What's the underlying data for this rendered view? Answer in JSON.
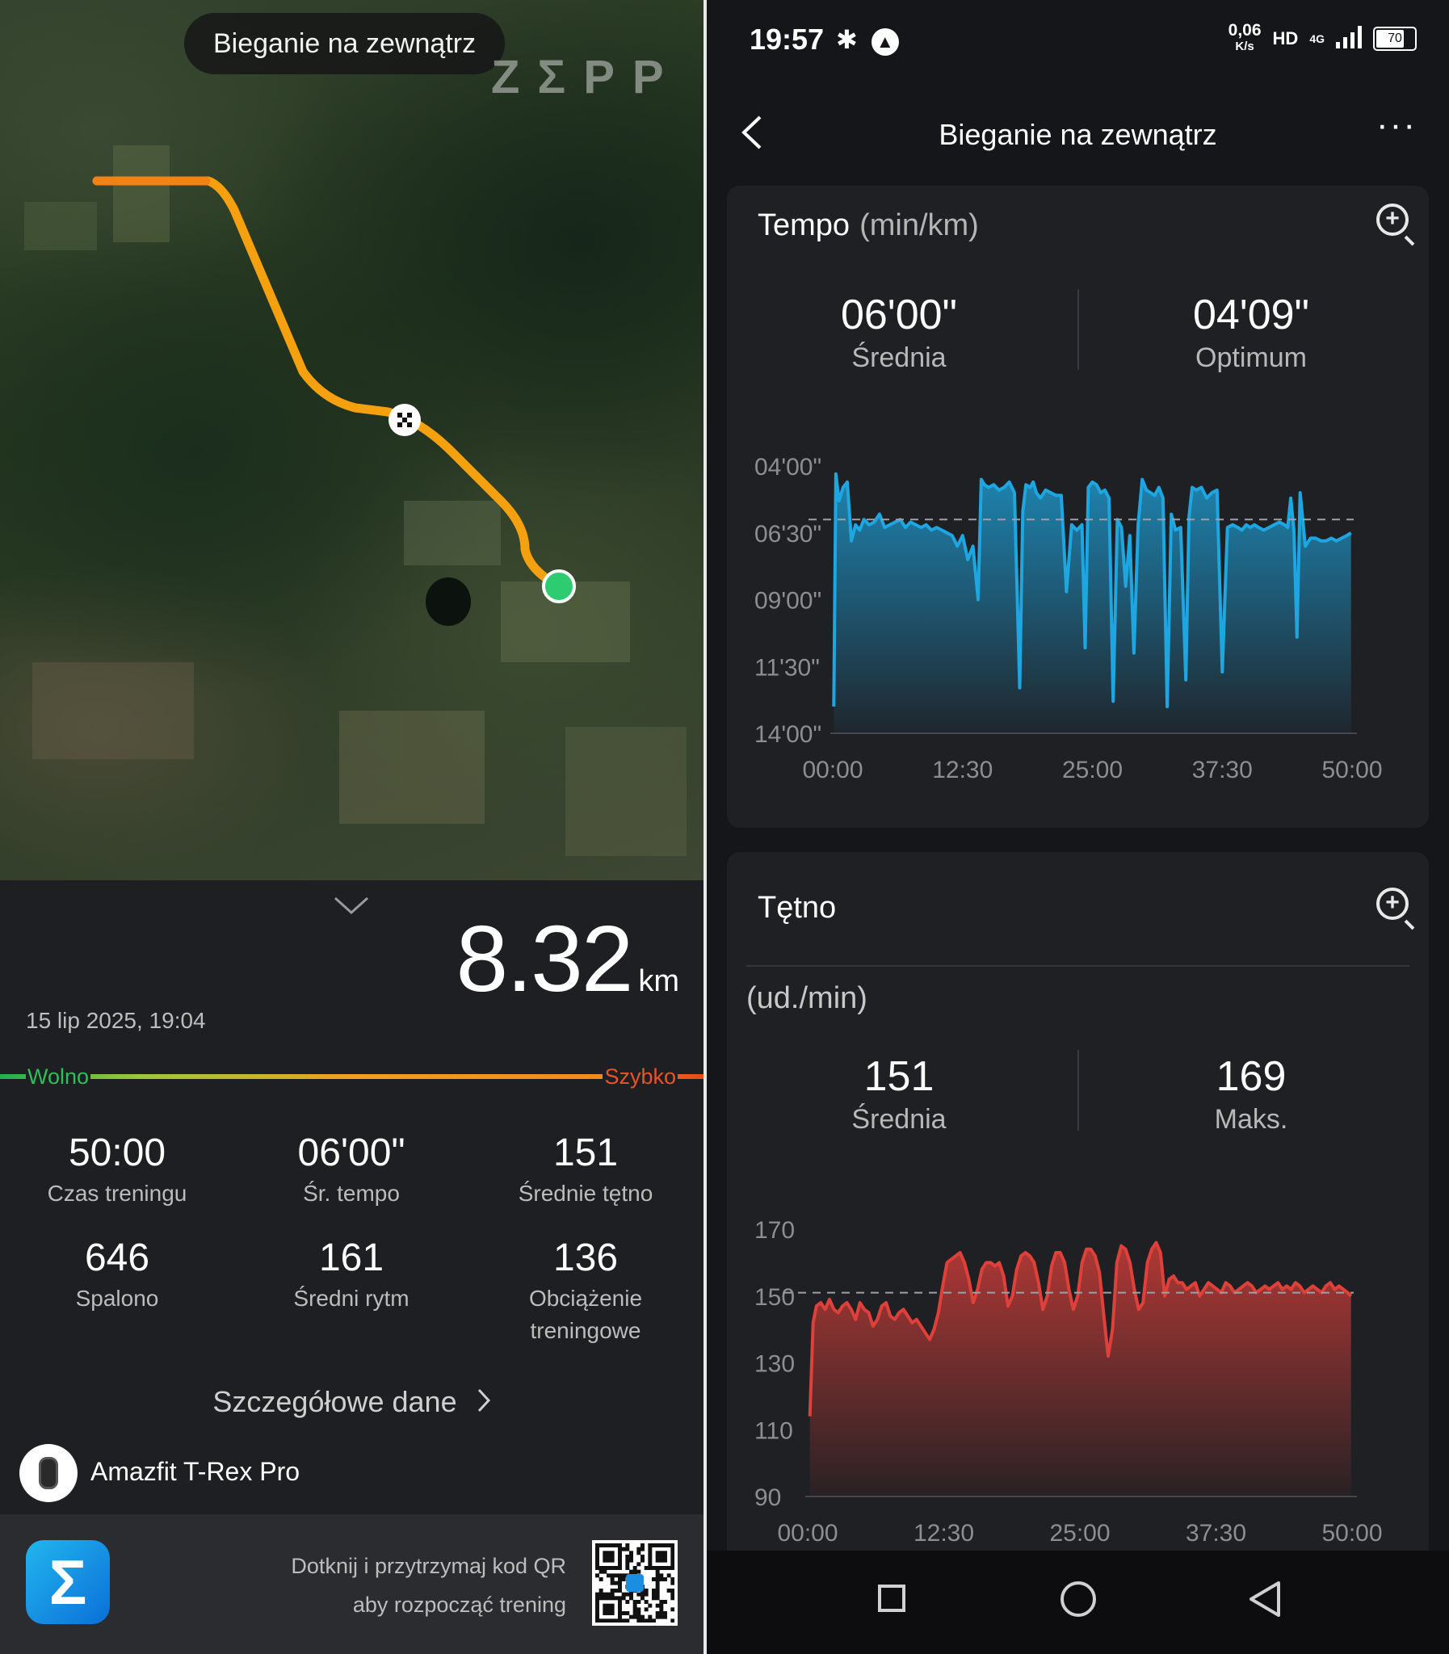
{
  "left": {
    "map": {
      "title": "Bieganie na zewnątrz",
      "brand": "ZΣPP",
      "route_color": "#f5a00f",
      "end_marker_color": "#2ecc71"
    },
    "summary": {
      "distance_value": "8.32",
      "distance_unit": "km",
      "date": "15 lip 2025, 19:04",
      "speed_slow_label": "Wolno",
      "speed_fast_label": "Szybko"
    },
    "stats": [
      {
        "value": "50:00",
        "label": "Czas treningu"
      },
      {
        "value": "06'00\"",
        "label": "Śr. tempo"
      },
      {
        "value": "151",
        "label": "Średnie tętno"
      },
      {
        "value": "646",
        "label": "Spalono"
      },
      {
        "value": "161",
        "label": "Średni rytm"
      },
      {
        "value": "136",
        "label": "Obciążenie treningowe"
      }
    ],
    "details_label": "Szczegółowe dane",
    "device_name": "Amazfit T-Rex Pro",
    "footer": {
      "qr_line1": "Dotknij i przytrzymaj kod QR",
      "qr_line2": "aby rozpocząć trening"
    }
  },
  "right": {
    "status": {
      "time": "19:57",
      "netspeed_value": "0,06",
      "netspeed_unit": "K/s",
      "hd": "HD",
      "network": "4G",
      "battery": "70"
    },
    "nav": {
      "title": "Bieganie na zewnątrz",
      "more": "···"
    },
    "tempo": {
      "title": "Tempo",
      "unit": "(min/km)",
      "avg_value": "06'00\"",
      "avg_label": "Średnia",
      "best_value": "04'09\"",
      "best_label": "Optimum"
    },
    "heart": {
      "title": "Tętno",
      "unit": "(ud./min)",
      "avg_value": "151",
      "avg_label": "Średnia",
      "max_value": "169",
      "max_label": "Maks."
    }
  },
  "chart_data": [
    {
      "type": "area",
      "title": "Tempo (min/km)",
      "y_reversed": true,
      "ytick_labels": [
        "04'00\"",
        "06'30\"",
        "09'00\"",
        "11'30\"",
        "14'00\""
      ],
      "yticks": [
        4.0,
        6.5,
        9.0,
        11.5,
        14.0
      ],
      "ylim": [
        4.0,
        14.0
      ],
      "xtick_labels": [
        "00:00",
        "12:30",
        "25:00",
        "37:30",
        "50:00"
      ],
      "xticks": [
        0,
        12.5,
        25,
        37.5,
        50
      ],
      "xlim": [
        0,
        50
      ],
      "reference_line": 6.0,
      "color": "#1ea6e0",
      "series": [
        {
          "x": [
            0.1,
            0.3,
            0.6,
            1.0,
            1.4,
            1.8,
            2.2,
            2.6,
            3.0,
            3.5,
            4.0,
            4.5,
            5.0,
            5.5,
            6.0,
            6.5,
            7.0,
            7.5,
            8.0,
            8.5,
            9.0,
            9.5,
            10.0,
            10.5,
            11.0,
            11.5,
            12.0,
            12.5,
            13.0,
            13.5,
            14.0,
            14.3,
            14.6,
            15.0,
            15.5,
            16.0,
            16.5,
            17.0,
            17.5,
            18.0,
            18.3,
            18.6,
            19.0,
            19.3,
            19.6,
            20.0,
            20.5,
            21.0,
            21.5,
            22.0,
            22.5,
            23.0,
            23.5,
            24.0,
            24.3,
            24.6,
            25.0,
            25.4,
            25.8,
            26.2,
            26.6,
            27.0,
            27.4,
            27.8,
            28.2,
            28.6,
            29.0,
            29.4,
            29.8,
            30.2,
            30.6,
            31.0,
            31.4,
            31.8,
            32.2,
            32.6,
            33.0,
            33.5,
            34.0,
            34.3,
            34.6,
            35.0,
            35.5,
            36.0,
            36.5,
            37.0,
            37.5,
            38.0,
            38.5,
            39.0,
            39.4,
            39.8,
            40.2,
            40.6,
            41.0,
            41.5,
            42.0,
            42.5,
            43.0,
            43.5,
            43.8,
            44.1,
            44.4,
            44.7,
            45.0,
            45.5,
            46.0,
            46.5,
            47.0,
            47.5,
            48.0,
            48.5,
            49.0,
            49.5,
            49.9
          ],
          "y": [
            13.0,
            4.3,
            5.3,
            4.8,
            4.6,
            6.8,
            6.2,
            6.4,
            6.0,
            6.2,
            6.1,
            5.8,
            6.3,
            6.2,
            6.1,
            6.0,
            6.3,
            6.1,
            6.2,
            6.3,
            6.2,
            6.4,
            6.3,
            6.4,
            6.5,
            6.6,
            7.0,
            6.6,
            7.5,
            7.0,
            9.0,
            4.5,
            4.7,
            4.8,
            4.7,
            4.9,
            4.8,
            4.6,
            5.0,
            12.3,
            5.7,
            4.7,
            4.8,
            4.6,
            5.0,
            5.2,
            4.9,
            5.0,
            5.1,
            5.1,
            8.7,
            6.2,
            6.4,
            6.2,
            10.8,
            4.8,
            4.6,
            4.7,
            5.0,
            4.9,
            5.2,
            12.8,
            6.0,
            6.3,
            8.5,
            6.6,
            11.0,
            6.2,
            4.5,
            4.9,
            5.0,
            5.1,
            4.8,
            5.2,
            13.0,
            5.8,
            6.4,
            6.3,
            12.0,
            5.9,
            4.8,
            4.9,
            4.8,
            5.2,
            5.0,
            4.9,
            11.7,
            6.3,
            6.2,
            6.3,
            6.4,
            6.2,
            6.3,
            6.2,
            6.3,
            6.4,
            6.3,
            6.2,
            6.1,
            6.2,
            6.3,
            5.2,
            6.4,
            10.4,
            5.0,
            7.0,
            6.7,
            6.7,
            6.8,
            6.8,
            6.7,
            6.8,
            6.7,
            6.6,
            6.5
          ]
        }
      ]
    },
    {
      "type": "area",
      "title": "Tętno (ud./min)",
      "ytick_labels": [
        "170",
        "150",
        "130",
        "110",
        "90"
      ],
      "yticks": [
        170,
        150,
        130,
        110,
        90
      ],
      "ylim": [
        90,
        170
      ],
      "xtick_labels": [
        "00:00",
        "12:30",
        "25:00",
        "37:30",
        "50:00"
      ],
      "xticks": [
        0,
        12.5,
        25,
        37.5,
        50
      ],
      "xlim": [
        0,
        50
      ],
      "reference_line": 151,
      "color": "#e0403a",
      "series": [
        {
          "x": [
            0.2,
            0.5,
            0.8,
            1.2,
            1.6,
            2.0,
            2.4,
            2.8,
            3.2,
            3.6,
            4.0,
            4.4,
            4.8,
            5.2,
            5.6,
            6.0,
            6.4,
            6.8,
            7.2,
            7.6,
            8.0,
            8.4,
            8.8,
            9.2,
            9.6,
            10.0,
            10.4,
            10.8,
            11.2,
            11.6,
            12.0,
            12.4,
            12.8,
            13.2,
            13.6,
            14.0,
            14.4,
            14.8,
            15.2,
            15.6,
            16.0,
            16.4,
            16.8,
            17.2,
            17.6,
            18.0,
            18.4,
            18.8,
            19.2,
            19.6,
            20.0,
            20.4,
            20.8,
            21.2,
            21.6,
            22.0,
            22.4,
            22.8,
            23.2,
            23.6,
            24.0,
            24.4,
            24.8,
            25.2,
            25.6,
            26.0,
            26.4,
            26.8,
            27.2,
            27.6,
            28.0,
            28.4,
            28.8,
            29.2,
            29.6,
            30.0,
            30.4,
            30.8,
            31.2,
            31.6,
            32.0,
            32.4,
            32.8,
            33.2,
            33.6,
            34.0,
            34.4,
            34.8,
            35.2,
            35.6,
            36.0,
            36.4,
            36.8,
            37.2,
            37.6,
            38.0,
            38.4,
            38.8,
            39.2,
            39.6,
            40.0,
            40.4,
            40.8,
            41.2,
            41.6,
            42.0,
            42.4,
            42.8,
            43.2,
            43.6,
            44.0,
            44.4,
            44.8,
            45.2,
            45.6,
            46.0,
            46.4,
            46.8,
            47.2,
            47.6,
            48.0,
            48.4,
            48.8,
            49.2,
            49.6,
            49.9
          ],
          "y": [
            114,
            142,
            147,
            148,
            146,
            149,
            146,
            145,
            147,
            148,
            146,
            143,
            148,
            146,
            145,
            141,
            143,
            147,
            148,
            144,
            143,
            145,
            146,
            144,
            142,
            143,
            141,
            139,
            137,
            140,
            145,
            153,
            160,
            161,
            162,
            163,
            160,
            155,
            148,
            152,
            158,
            160,
            160,
            159,
            160,
            156,
            147,
            150,
            158,
            162,
            163,
            162,
            160,
            154,
            146,
            150,
            159,
            163,
            163,
            160,
            152,
            146,
            150,
            160,
            164,
            164,
            162,
            157,
            144,
            132,
            140,
            160,
            165,
            164,
            160,
            152,
            146,
            148,
            160,
            164,
            166,
            163,
            150,
            155,
            156,
            154,
            154,
            152,
            153,
            154,
            150,
            152,
            154,
            153,
            152,
            151,
            154,
            153,
            151,
            152,
            153,
            154,
            153,
            151,
            152,
            153,
            152,
            153,
            154,
            152,
            153,
            152,
            154,
            153,
            151,
            152,
            153,
            152,
            151,
            153,
            154,
            152,
            153,
            152,
            151,
            150
          ]
        }
      ]
    }
  ]
}
